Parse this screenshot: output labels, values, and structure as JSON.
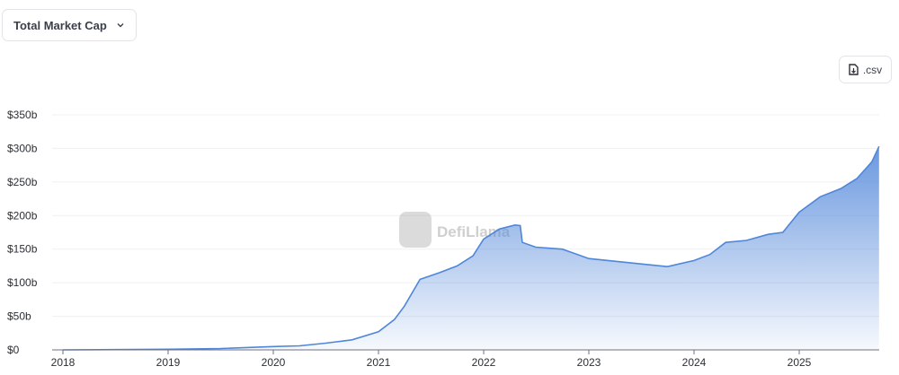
{
  "selector": {
    "label": "Total Market Cap"
  },
  "csv_button": {
    "label": ".csv"
  },
  "watermark": "DefiLlama",
  "chart_data": {
    "type": "area",
    "title": "",
    "xlabel": "",
    "ylabel": "",
    "ylim": [
      0,
      350
    ],
    "y_ticks": [
      "$0",
      "$50b",
      "$100b",
      "$150b",
      "$200b",
      "$250b",
      "$300b",
      "$350b"
    ],
    "x_ticks": [
      "2018",
      "2019",
      "2020",
      "2021",
      "2022",
      "2023",
      "2024",
      "2025"
    ],
    "grid": "horizontal",
    "color": "#4f86d9",
    "unit": "billion USD",
    "series": [
      {
        "points": [
          [
            "2018-01-01",
            0
          ],
          [
            "2019-01-01",
            1
          ],
          [
            "2019-07-01",
            2
          ],
          [
            "2020-01-01",
            5
          ],
          [
            "2020-04-01",
            6
          ],
          [
            "2020-07-01",
            10
          ],
          [
            "2020-10-01",
            15
          ],
          [
            "2021-01-01",
            27
          ],
          [
            "2021-02-25",
            45
          ],
          [
            "2021-04-01",
            65
          ],
          [
            "2021-05-25",
            105
          ],
          [
            "2021-08-01",
            115
          ],
          [
            "2021-10-01",
            125
          ],
          [
            "2021-11-25",
            140
          ],
          [
            "2022-01-01",
            165
          ],
          [
            "2022-02-25",
            180
          ],
          [
            "2022-04-20",
            186
          ],
          [
            "2022-05-08",
            185
          ],
          [
            "2022-05-15",
            160
          ],
          [
            "2022-07-01",
            153
          ],
          [
            "2022-10-01",
            150
          ],
          [
            "2023-01-01",
            136
          ],
          [
            "2023-04-01",
            132
          ],
          [
            "2023-07-01",
            128
          ],
          [
            "2023-10-01",
            124
          ],
          [
            "2024-01-01",
            133
          ],
          [
            "2024-02-25",
            142
          ],
          [
            "2024-04-20",
            160
          ],
          [
            "2024-07-01",
            163
          ],
          [
            "2024-09-15",
            172
          ],
          [
            "2024-11-05",
            175
          ],
          [
            "2025-01-01",
            205
          ],
          [
            "2025-03-15",
            228
          ],
          [
            "2025-05-25",
            240
          ],
          [
            "2025-07-20",
            255
          ],
          [
            "2025-09-10",
            280
          ],
          [
            "2025-10-05",
            303
          ]
        ]
      }
    ]
  }
}
